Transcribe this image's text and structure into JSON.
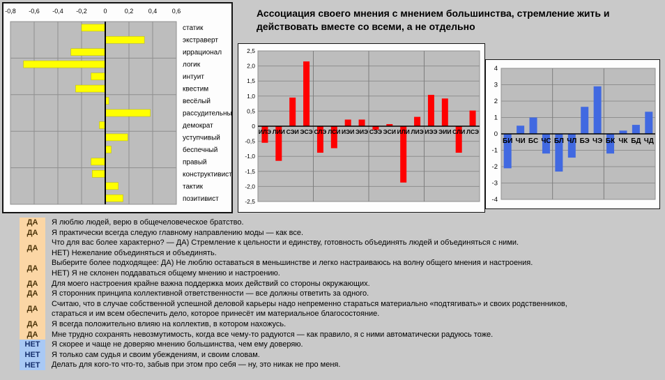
{
  "colors": {
    "page_bg": "#c9c9c9",
    "panel_bg": "#fdfdfd",
    "plot_bg": "#bdbdbd",
    "grid": "#8f8f8f",
    "axis": "#000000",
    "bar_yellow": "#ffff00",
    "bar_red": "#ff0000",
    "bar_blue": "#4169e1",
    "yes_bg": "#fbd6a5",
    "no_bg": "#a9c9f5"
  },
  "chart_data": [
    {
      "name": "dichotomy-profile",
      "type": "bar",
      "orientation": "horizontal",
      "categories": [
        "статик",
        "экстраверт",
        "иррационал",
        "логик",
        "интуит",
        "квестим",
        "весёлый",
        "рассудительный",
        "демократ",
        "уступчивый",
        "беспечный",
        "правый",
        "конструктивист",
        "тактик",
        "позитивист"
      ],
      "values": [
        -0.2,
        0.33,
        -0.29,
        -0.69,
        -0.12,
        -0.25,
        0.03,
        0.38,
        -0.05,
        0.19,
        0.05,
        -0.12,
        -0.11,
        0.11,
        0.15
      ],
      "xlim": [
        -0.8,
        0.6
      ],
      "xtick_step": 0.2,
      "decimal_separator": ",",
      "grid": true,
      "group_size": 3,
      "bar_color": "#ffff00"
    },
    {
      "name": "sociotype-profile",
      "type": "bar",
      "title": "Ассоциация своего мнения с мнением большинства, стремление жить и действовать вместе со всеми, а не отдельно",
      "categories": [
        "ИЛЭ",
        "ЛИИ",
        "СЭИ",
        "ЭСЭ",
        "СЛЭ",
        "ЛСИ",
        "ИЭИ",
        "ЭИЭ",
        "СЭЭ",
        "ЭСИ",
        "ИЛИ",
        "ЛИЭ",
        "ИЭЭ",
        "ЭИИ",
        "СЛИ",
        "ЛСЭ"
      ],
      "values": [
        -0.55,
        -1.15,
        0.95,
        2.15,
        -0.88,
        -0.73,
        0.22,
        0.22,
        -0.12,
        0.07,
        -1.87,
        0.31,
        1.04,
        0.92,
        -0.88,
        0.52
      ],
      "ylim": [
        -2.5,
        2.5
      ],
      "ytick_step": 0.5,
      "decimal_separator": ",",
      "grid": true,
      "group_size": 4,
      "bar_color": "#ff0000"
    },
    {
      "name": "aspect-profile",
      "type": "bar",
      "categories": [
        "БИ",
        "ЧИ",
        "БС",
        "ЧС",
        "БЛ",
        "ЧЛ",
        "БЭ",
        "ЧЭ",
        "БК",
        "ЧК",
        "БД",
        "ЧД"
      ],
      "values": [
        -2.1,
        0.5,
        1.0,
        -1.2,
        -2.3,
        -1.45,
        1.65,
        2.9,
        -1.2,
        0.2,
        0.55,
        1.35
      ],
      "ylim": [
        -4,
        4
      ],
      "ytick_step": 1,
      "grid": true,
      "group_size": 4,
      "bar_color": "#4169e1"
    }
  ],
  "qa": {
    "yes_label": "ДА",
    "no_label": "НЕТ",
    "items": [
      {
        "answer": "ДА",
        "lines": [
          "Я люблю людей, верю в общечеловеческое братство."
        ]
      },
      {
        "answer": "ДА",
        "lines": [
          "Я практически всегда следую главному направлению моды — как все."
        ]
      },
      {
        "answer": "ДА",
        "lines": [
          "Что для вас более характерно? — ДА) Стремление к цельности и единству, готовность объединять людей и объединяться с ними.",
          "НЕТ) Нежелание объединяться и объединять."
        ]
      },
      {
        "answer": "ДА",
        "lines": [
          "Выберите более подходящее: ДА) Не люблю оставаться в меньшинстве и легко настраиваюсь на волну общего мнения и настроения.",
          "НЕТ) Я не склонен поддаваться общему мнению и настроению."
        ]
      },
      {
        "answer": "ДА",
        "lines": [
          "Для моего настроения крайне важна поддержка моих действий со стороны окружающих."
        ]
      },
      {
        "answer": "ДА",
        "lines": [
          "Я сторонник принципа коллективной ответственности — все должны ответить за одного."
        ]
      },
      {
        "answer": "ДА",
        "lines": [
          "Считаю, что в случае собственной успешной деловой карьеры надо непременно стараться материально «подтягивать» и своих родственников,",
          "стараться и им всем обеспечить дело, которое принесёт им материальное благосостояние."
        ]
      },
      {
        "answer": "ДА",
        "lines": [
          "Я всегда положительно влияю на коллектив, в котором нахожусь."
        ]
      },
      {
        "answer": "ДА",
        "lines": [
          "Мне трудно сохранять невозмутимость, когда все чему-то радуются — как правило, я с ними автоматически радуюсь тоже."
        ]
      },
      {
        "answer": "НЕТ",
        "lines": [
          "Я скорее и чаще не доверяю мнению большинства, чем ему доверяю."
        ]
      },
      {
        "answer": "НЕТ",
        "lines": [
          "Я только сам судья и своим убеждениям, и своим словам."
        ]
      },
      {
        "answer": "НЕТ",
        "lines": [
          "Делать для кого-то что-то, забыв при этом про себя — ну, это никак не про меня."
        ]
      }
    ]
  }
}
